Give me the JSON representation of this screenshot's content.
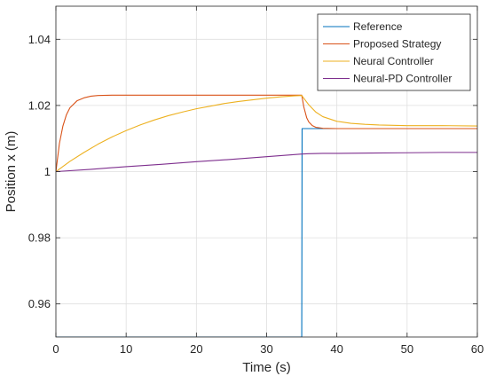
{
  "chart_data": {
    "type": "line",
    "title": "",
    "xlabel": "Time (s)",
    "ylabel": "Position x (m)",
    "xlim": [
      0,
      60
    ],
    "ylim": [
      0.95,
      1.05
    ],
    "xticks": [
      0,
      10,
      20,
      30,
      40,
      50,
      60
    ],
    "yticks": [
      0.96,
      0.98,
      1,
      1.02,
      1.04
    ],
    "xtick_labels": [
      "0",
      "10",
      "20",
      "30",
      "40",
      "50",
      "60"
    ],
    "ytick_labels": [
      "0.96",
      "0.98",
      "1",
      "1.02",
      "1.04"
    ],
    "grid": true,
    "legend_position": "top-right",
    "series": [
      {
        "name": "Reference",
        "color": "#0072BD",
        "x": [
          0,
          34.95,
          35.0,
          35.05,
          60
        ],
        "y": [
          0.95,
          0.95,
          0.95,
          1.013,
          1.013
        ]
      },
      {
        "name": "Proposed Strategy",
        "color": "#D95319",
        "x": [
          0,
          0.5,
          1,
          1.5,
          2,
          3,
          4,
          5,
          6,
          8,
          10,
          20,
          30,
          35,
          35.3,
          35.7,
          36,
          36.5,
          37,
          38,
          40,
          50,
          60
        ],
        "y": [
          1.0,
          1.0085,
          1.0138,
          1.0172,
          1.0193,
          1.0214,
          1.0223,
          1.0228,
          1.023,
          1.0231,
          1.0231,
          1.0231,
          1.0231,
          1.0231,
          1.0195,
          1.0163,
          1.015,
          1.0139,
          1.0134,
          1.0131,
          1.013,
          1.013,
          1.013
        ]
      },
      {
        "name": "Neural Controller",
        "color": "#EDB120",
        "x": [
          0,
          2,
          4,
          6,
          8,
          10,
          12,
          14,
          16,
          18,
          20,
          22,
          24,
          26,
          28,
          30,
          32,
          34,
          35,
          36,
          37,
          38,
          40,
          42,
          44,
          46,
          48,
          50,
          55,
          60
        ],
        "y": [
          1.0,
          1.0031,
          1.0058,
          1.0083,
          1.0105,
          1.0124,
          1.0141,
          1.0156,
          1.0169,
          1.018,
          1.019,
          1.0198,
          1.0206,
          1.0212,
          1.0217,
          1.0222,
          1.0226,
          1.0229,
          1.023,
          1.0202,
          1.018,
          1.0166,
          1.0152,
          1.0146,
          1.0143,
          1.0141,
          1.014,
          1.0139,
          1.0139,
          1.0138
        ]
      },
      {
        "name": "Neural-PD Controller",
        "color": "#7E2F8E",
        "x": [
          0,
          5,
          10,
          15,
          20,
          25,
          30,
          35,
          36,
          38,
          40,
          45,
          50,
          55,
          60
        ],
        "y": [
          1.0,
          1.0007,
          1.0015,
          1.0022,
          1.003,
          1.0037,
          1.0045,
          1.0053,
          1.0054,
          1.0055,
          1.0055,
          1.0056,
          1.0057,
          1.0058,
          1.0058
        ]
      }
    ]
  }
}
